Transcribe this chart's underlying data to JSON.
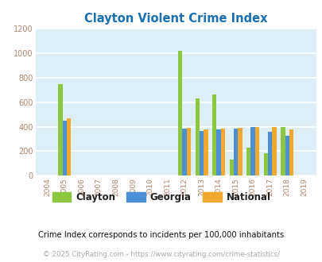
{
  "title": "Clayton Violent Crime Index",
  "title_color": "#1a6faf",
  "years": [
    2004,
    2005,
    2006,
    2007,
    2008,
    2009,
    2010,
    2011,
    2012,
    2013,
    2014,
    2015,
    2016,
    2017,
    2018,
    2019
  ],
  "clayton": [
    0,
    750,
    0,
    0,
    0,
    0,
    0,
    0,
    1020,
    630,
    660,
    130,
    230,
    180,
    400,
    0
  ],
  "georgia": [
    0,
    450,
    0,
    0,
    0,
    0,
    0,
    0,
    385,
    365,
    380,
    382,
    400,
    355,
    325,
    0
  ],
  "national": [
    0,
    470,
    0,
    0,
    0,
    0,
    0,
    0,
    390,
    375,
    385,
    390,
    400,
    400,
    375,
    0
  ],
  "clayton_color": "#8dc63f",
  "georgia_color": "#4b8fd4",
  "national_color": "#f0a830",
  "plot_bg_color": "#ddeef6",
  "ylim": [
    0,
    1200
  ],
  "yticks": [
    0,
    200,
    400,
    600,
    800,
    1000,
    1200
  ],
  "bar_width": 0.25,
  "footnote1": "Crime Index corresponds to incidents per 100,000 inhabitants",
  "footnote2": "© 2025 CityRating.com - https://www.cityrating.com/crime-statistics/",
  "legend_labels": [
    "Clayton",
    "Georgia",
    "National"
  ],
  "grid_color": "#ffffff",
  "tick_color": "#b0856e"
}
